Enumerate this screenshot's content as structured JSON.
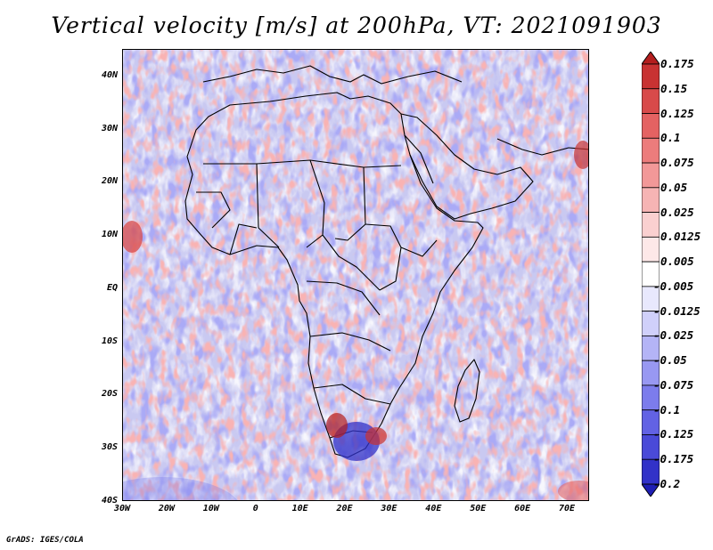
{
  "title": "Vertical velocity [m/s] at 200hPa, VT: 2021091903",
  "footer": "GrADS: IGES/COLA",
  "map": {
    "lon_range": [
      -30,
      75
    ],
    "lat_range": [
      -40,
      45
    ],
    "lat_ticks": [
      {
        "label": "40N",
        "lat": 40
      },
      {
        "label": "30N",
        "lat": 30
      },
      {
        "label": "20N",
        "lat": 20
      },
      {
        "label": "10N",
        "lat": 10
      },
      {
        "label": "EQ",
        "lat": 0
      },
      {
        "label": "10S",
        "lat": -10
      },
      {
        "label": "20S",
        "lat": -20
      },
      {
        "label": "30S",
        "lat": -30
      },
      {
        "label": "40S",
        "lat": -40
      }
    ],
    "lon_ticks": [
      {
        "label": "30W",
        "lon": -30
      },
      {
        "label": "20W",
        "lon": -20
      },
      {
        "label": "10W",
        "lon": -10
      },
      {
        "label": "0",
        "lon": 0
      },
      {
        "label": "10E",
        "lon": 10
      },
      {
        "label": "20E",
        "lon": 20
      },
      {
        "label": "30E",
        "lon": 30
      },
      {
        "label": "40E",
        "lon": 40
      },
      {
        "label": "50E",
        "lon": 50
      },
      {
        "label": "60E",
        "lon": 60
      },
      {
        "label": "70E",
        "lon": 70
      }
    ]
  },
  "colorbar": {
    "levels": [
      "0.175",
      "0.15",
      "0.125",
      "0.1",
      "0.075",
      "0.05",
      "0.025",
      "0.0125",
      "0.005",
      "-0.005",
      "-0.0125",
      "-0.025",
      "-0.05",
      "-0.075",
      "-0.1",
      "-0.125",
      "-0.175",
      "-0.2"
    ],
    "colors": [
      "#b41e1e",
      "#c83232",
      "#d84a4a",
      "#e46262",
      "#ec7c7c",
      "#f29898",
      "#f6b4b4",
      "#fad0d0",
      "#fde8e8",
      "#ffffff",
      "#e8e8fd",
      "#d0d0fa",
      "#b4b4f6",
      "#9898f2",
      "#7c7cec",
      "#6262e4",
      "#4a4ad8",
      "#3232c8",
      "#1e1eb4"
    ]
  }
}
